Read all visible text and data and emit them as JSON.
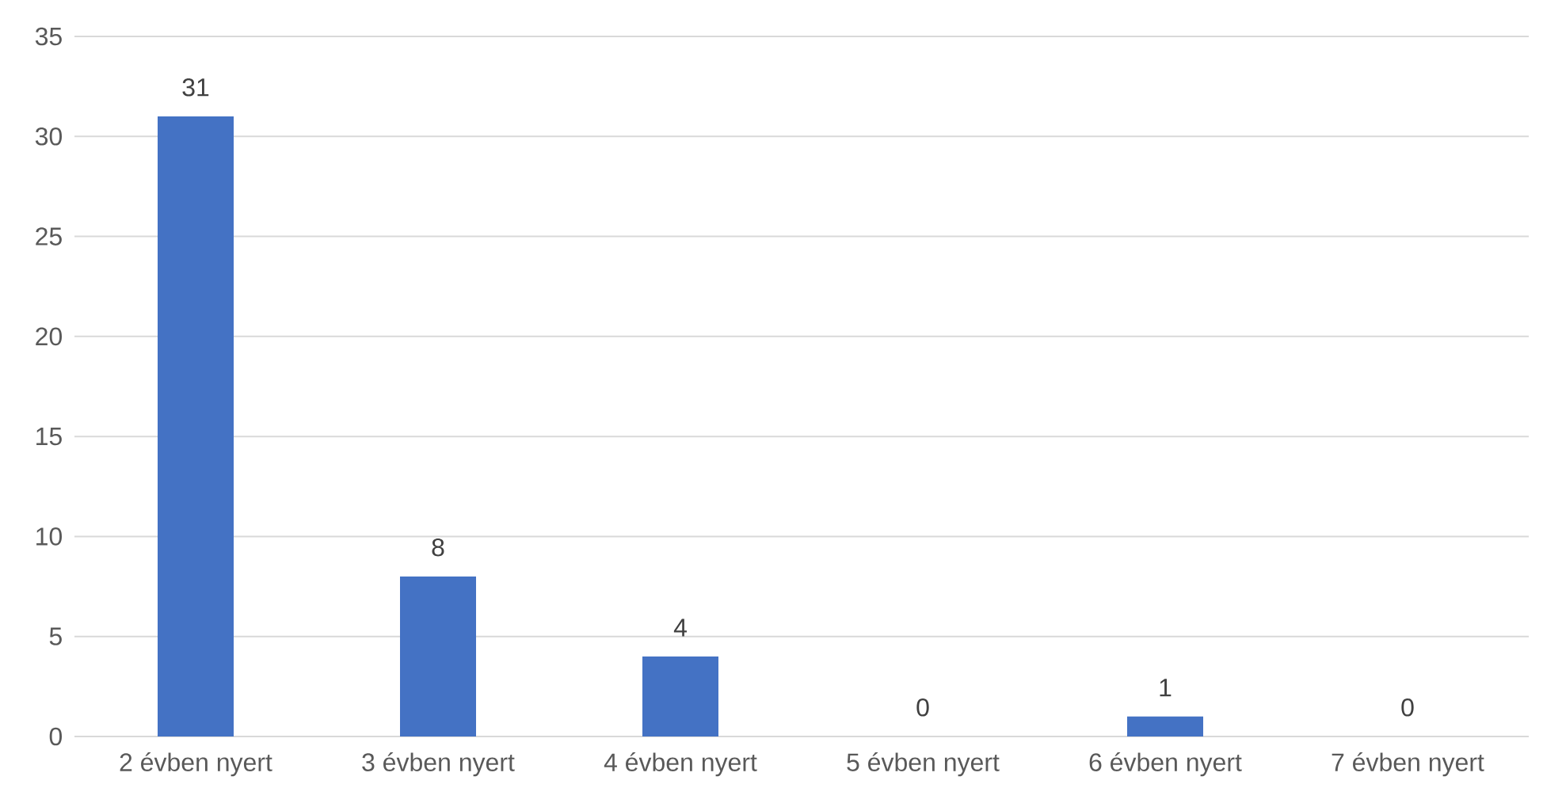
{
  "chart_data": {
    "type": "bar",
    "categories": [
      "2 évben nyert",
      "3 évben nyert",
      "4 évben nyert",
      "5 évben nyert",
      "6 évben nyert",
      "7 évben nyert"
    ],
    "values": [
      31,
      8,
      4,
      0,
      1,
      0
    ],
    "color": "#4472c4",
    "ylim": [
      0,
      35
    ],
    "yticks": [
      0,
      5,
      10,
      15,
      20,
      25,
      30,
      35
    ],
    "grid": "y",
    "data_labels": true
  }
}
